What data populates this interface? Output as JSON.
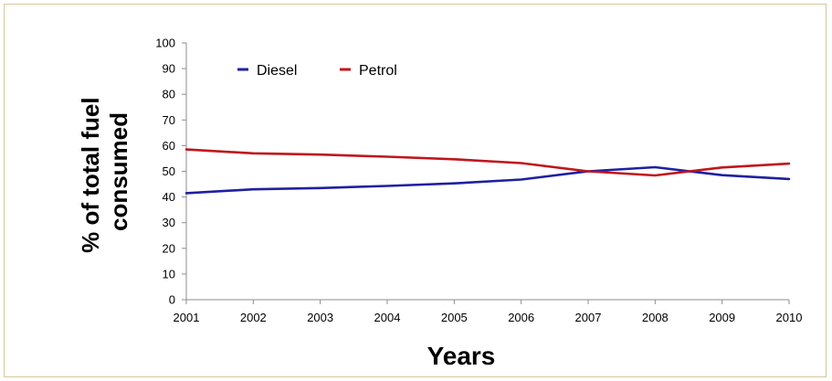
{
  "chart_data": {
    "type": "line",
    "x": [
      2001,
      2002,
      2003,
      2004,
      2005,
      2006,
      2007,
      2008,
      2009,
      2010
    ],
    "series": [
      {
        "name": "Diesel",
        "color": "#1f1fa3",
        "values": [
          41.5,
          43,
          43.5,
          44.3,
          45.3,
          46.8,
          50,
          51.6,
          48.5,
          47
        ]
      },
      {
        "name": "Petrol",
        "color": "#c0161b",
        "values": [
          58.5,
          57,
          56.5,
          55.7,
          54.7,
          53.2,
          50,
          48.4,
          51.5,
          53
        ]
      }
    ],
    "ylabel_lines": [
      "% of total fuel",
      "consumed"
    ],
    "xlabel": "Years",
    "ylim": [
      0,
      100
    ],
    "yticks": [
      "0",
      "10",
      "20",
      "30",
      "40",
      "50",
      "60",
      "70",
      "80",
      "90",
      "100"
    ],
    "xticks": [
      "2001",
      "2002",
      "2003",
      "2004",
      "2005",
      "2006",
      "2007",
      "2008",
      "2009",
      "2010"
    ],
    "grid": false,
    "legend": "top-left"
  }
}
